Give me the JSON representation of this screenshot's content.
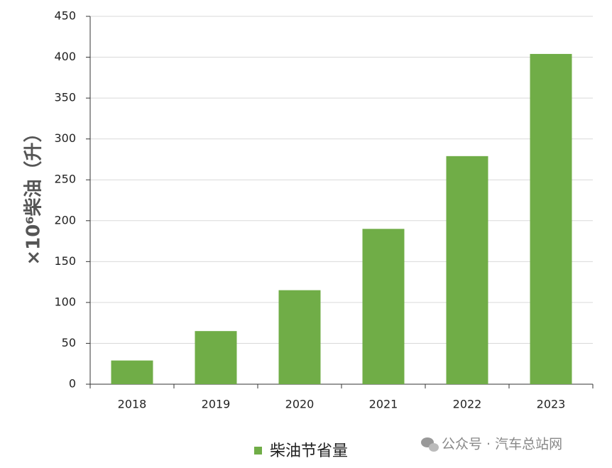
{
  "chart_data": {
    "type": "bar",
    "y_label": "×10⁶柴油（升）",
    "categories": [
      "2018",
      "2019",
      "2020",
      "2021",
      "2022",
      "2023"
    ],
    "series": [
      {
        "name": "柴油节省量",
        "color": "#70ad47",
        "values": [
          29,
          65,
          115,
          190,
          279,
          404
        ]
      }
    ],
    "ylim": [
      0,
      450
    ],
    "yticks": [
      0,
      50,
      100,
      150,
      200,
      250,
      300,
      350,
      400,
      450
    ],
    "grid": true,
    "legend": "bottom",
    "watermark": "公众号 · 汽车总站网"
  }
}
